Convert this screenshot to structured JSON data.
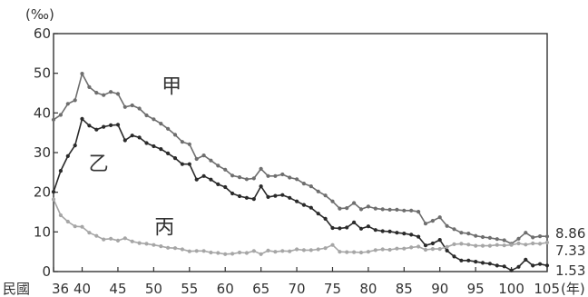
{
  "chart_data": {
    "type": "line",
    "title": "",
    "ylabel": "(‰)",
    "xlabel": "(年)",
    "x_prefix": "民國",
    "ylim": [
      0,
      60
    ],
    "xlim": [
      36,
      105
    ],
    "x_ticks": [
      36,
      40,
      45,
      50,
      55,
      60,
      65,
      70,
      75,
      80,
      85,
      90,
      95,
      100,
      105
    ],
    "y_ticks": [
      0,
      10,
      20,
      30,
      40,
      50,
      60
    ],
    "grid": false,
    "series": [
      {
        "name": "甲",
        "color": "#6e6e6e",
        "x": [
          36,
          37,
          38,
          39,
          40,
          41,
          42,
          43,
          44,
          45,
          46,
          47,
          48,
          49,
          50,
          51,
          52,
          53,
          54,
          55,
          56,
          57,
          58,
          59,
          60,
          61,
          62,
          63,
          64,
          65,
          66,
          67,
          68,
          69,
          70,
          71,
          72,
          73,
          74,
          75,
          76,
          77,
          78,
          79,
          80,
          81,
          82,
          83,
          84,
          85,
          86,
          87,
          88,
          89,
          90,
          91,
          92,
          93,
          94,
          95,
          96,
          97,
          98,
          99,
          100,
          101,
          102,
          103,
          104,
          105
        ],
        "values": [
          38.3,
          39.5,
          42.3,
          43.2,
          49.9,
          46.5,
          45.1,
          44.5,
          45.3,
          44.8,
          41.5,
          41.9,
          41.1,
          39.4,
          38.4,
          37.3,
          36,
          34.5,
          32.7,
          32.1,
          28.4,
          29.3,
          28,
          26.7,
          25.7,
          24.2,
          23.8,
          23.3,
          23.5,
          25.9,
          24.1,
          24.1,
          24.5,
          23.7,
          23.3,
          22.2,
          21.5,
          20.2,
          19.2,
          17.7,
          15.9,
          16,
          17.3,
          15.7,
          16.4,
          15.9,
          15.7,
          15.6,
          15.6,
          15.4,
          15.4,
          15.1,
          12.1,
          12.8,
          13.7,
          11.5,
          10.7,
          9.8,
          9.6,
          9,
          8.7,
          8.5,
          8.2,
          7.9,
          7,
          8.3,
          9.8,
          8.6,
          8.9,
          8.86
        ]
      },
      {
        "name": "乙",
        "color": "#2a2a2a",
        "x": [
          36,
          37,
          38,
          39,
          40,
          41,
          42,
          43,
          44,
          45,
          46,
          47,
          48,
          49,
          50,
          51,
          52,
          53,
          54,
          55,
          56,
          57,
          58,
          59,
          60,
          61,
          62,
          63,
          64,
          65,
          66,
          67,
          68,
          69,
          70,
          71,
          72,
          73,
          74,
          75,
          76,
          77,
          78,
          79,
          80,
          81,
          82,
          83,
          84,
          85,
          86,
          87,
          88,
          89,
          90,
          91,
          92,
          93,
          94,
          95,
          96,
          97,
          98,
          99,
          100,
          101,
          102,
          103,
          104,
          105
        ],
        "values": [
          20.1,
          25.4,
          29.1,
          31.8,
          38.5,
          36.8,
          35.8,
          36.5,
          36.9,
          37,
          33.1,
          34.3,
          33.8,
          32.4,
          31.6,
          30.9,
          29.8,
          28.6,
          27.1,
          27.1,
          23.2,
          24.1,
          23.2,
          22,
          21.3,
          19.7,
          19,
          18.6,
          18.3,
          21.5,
          18.8,
          19.1,
          19.3,
          18.6,
          17.7,
          16.8,
          16.1,
          14.6,
          13.3,
          11,
          10.9,
          11.1,
          12.4,
          10.8,
          11.4,
          10.5,
          10.2,
          10.1,
          9.8,
          9.6,
          9.3,
          8.8,
          6.6,
          7.1,
          8,
          5.3,
          3.8,
          2.8,
          2.8,
          2.5,
          2.2,
          2,
          1.5,
          1.3,
          0.3,
          1.2,
          3,
          1.5,
          1.9,
          1.53
        ]
      },
      {
        "name": "丙",
        "color": "#a6a6a6",
        "x": [
          36,
          37,
          38,
          39,
          40,
          41,
          42,
          43,
          44,
          45,
          46,
          47,
          48,
          49,
          50,
          51,
          52,
          53,
          54,
          55,
          56,
          57,
          58,
          59,
          60,
          61,
          62,
          63,
          64,
          65,
          66,
          67,
          68,
          69,
          70,
          71,
          72,
          73,
          74,
          75,
          76,
          77,
          78,
          79,
          80,
          81,
          82,
          83,
          84,
          85,
          86,
          87,
          88,
          89,
          90,
          91,
          92,
          93,
          94,
          95,
          96,
          97,
          98,
          99,
          100,
          101,
          102,
          103,
          104,
          105
        ],
        "values": [
          18.2,
          14.2,
          12.6,
          11.4,
          11.3,
          9.8,
          9,
          8.1,
          8.3,
          7.8,
          8.4,
          7.6,
          7.2,
          7,
          6.7,
          6.4,
          6,
          5.9,
          5.6,
          5.1,
          5.2,
          5.2,
          4.8,
          4.7,
          4.4,
          4.5,
          4.8,
          4.7,
          5.2,
          4.4,
          5.3,
          5,
          5.2,
          5.1,
          5.6,
          5.4,
          5.4,
          5.6,
          5.9,
          6.7,
          5,
          4.9,
          4.9,
          4.8,
          5,
          5.4,
          5.6,
          5.5,
          5.8,
          5.8,
          6.1,
          6.3,
          5.5,
          5.7,
          5.7,
          6.2,
          6.9,
          7,
          6.8,
          6.5,
          6.5,
          6.5,
          6.7,
          6.6,
          6.7,
          7.1,
          6.8,
          7.1,
          7,
          7.33
        ]
      }
    ],
    "series_labels": [
      {
        "text": "甲",
        "x": 52.5,
        "y": 45
      },
      {
        "text": "乙",
        "x": 42.3,
        "y": 25.5
      },
      {
        "text": "丙",
        "x": 51.5,
        "y": 9.5
      }
    ],
    "end_labels": [
      "8.86",
      "7.33",
      "1.53"
    ]
  }
}
